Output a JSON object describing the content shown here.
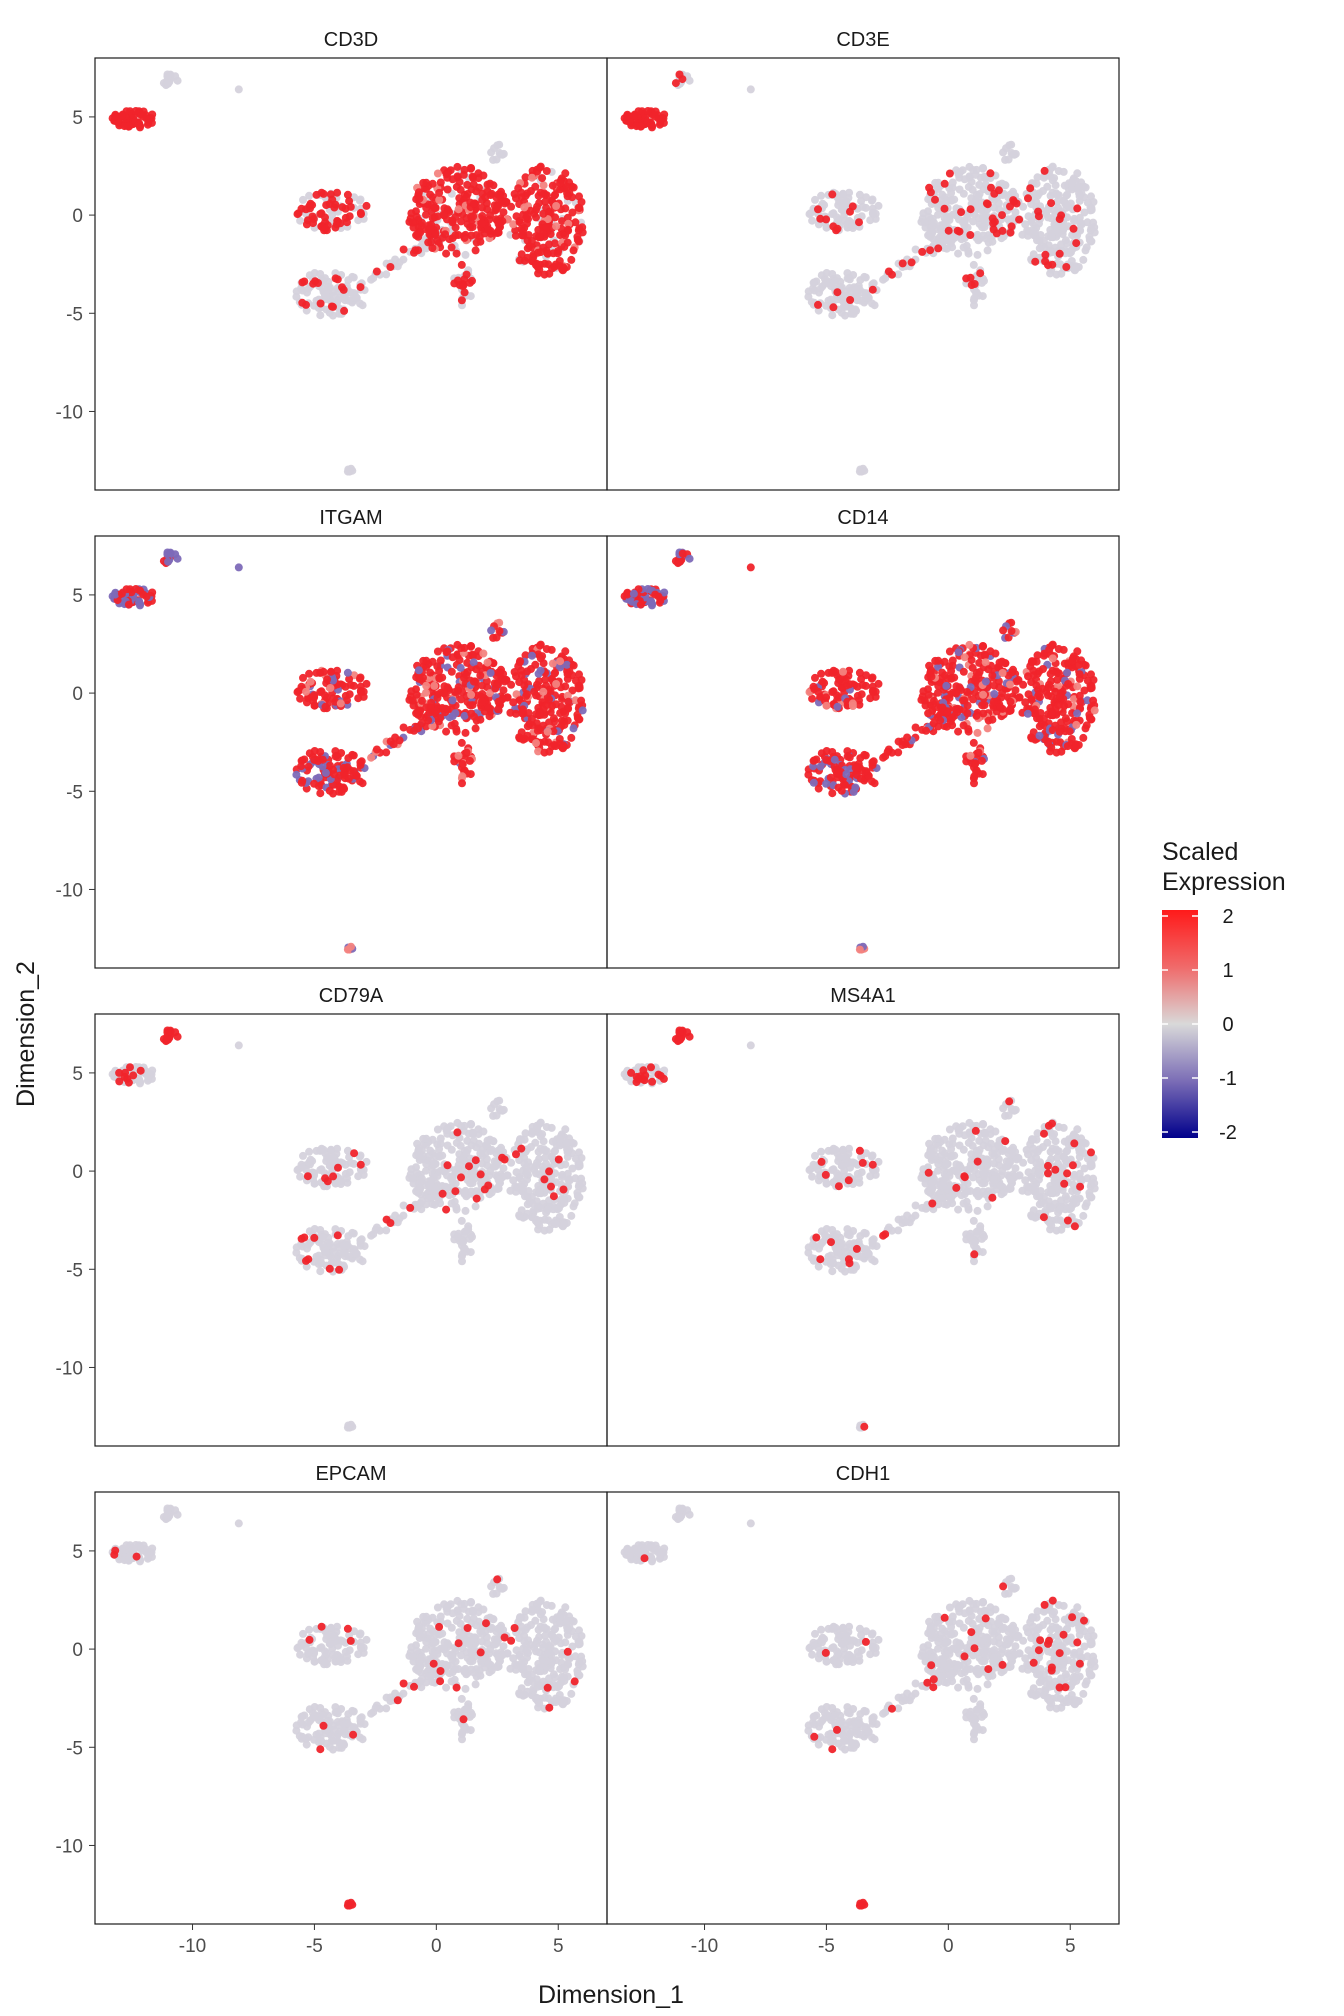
{
  "chart_data": {
    "type": "scatter",
    "panels": [
      {
        "name": "CD3D",
        "expression": "high_tcell"
      },
      {
        "name": "CD3E",
        "expression": "sparse"
      },
      {
        "name": "ITGAM",
        "expression": "high_all"
      },
      {
        "name": "CD14",
        "expression": "high_all"
      },
      {
        "name": "CD79A",
        "expression": "sparse_b"
      },
      {
        "name": "MS4A1",
        "expression": "sparse_b"
      },
      {
        "name": "EPCAM",
        "expression": "sparse_epi"
      },
      {
        "name": "CDH1",
        "expression": "sparse_epi"
      }
    ],
    "xlabel": "Dimension_1",
    "ylabel": "Dimension_2",
    "xlim": [
      -14,
      7
    ],
    "ylim": [
      -14,
      8
    ],
    "xticks": [
      -10,
      -5,
      0,
      5
    ],
    "yticks": [
      5,
      0,
      -5,
      -10
    ],
    "xtick_labels": [
      "-10",
      "-5",
      "0",
      "5"
    ],
    "ytick_labels": [
      "5",
      "0",
      "-5",
      "-10"
    ],
    "layout": "4 rows x 2 columns, shared axes",
    "legend": {
      "title_line1": "Scaled",
      "title_line2": "Expression",
      "placement": "right",
      "ticks": [
        2,
        1,
        0,
        -1,
        -2
      ],
      "tick_labels": [
        "2",
        "1",
        "0",
        "-1",
        "-2"
      ],
      "colors": {
        "high": "#ff1a1a",
        "mid": "#d9d9d9",
        "low": "#00008b"
      }
    },
    "colors": {
      "background_cells": "#d5d2dc",
      "expressed": "#f0242b",
      "low_expressed": "#7d6ab8"
    },
    "clusters_data_units": {
      "top_left_island": {
        "x": [
          -13.3,
          -11.6
        ],
        "y": [
          4.3,
          5.4
        ]
      },
      "small_top_island": {
        "x": [
          -11.2,
          -10.6
        ],
        "y": [
          6.5,
          7.3
        ]
      },
      "lone_cell": {
        "x": -8.1,
        "y": 6.4
      },
      "left_middle_cluster": {
        "x": [
          -5.8,
          -2.8
        ],
        "y": [
          -0.8,
          1.3
        ]
      },
      "left_bottom_cluster": {
        "x": [
          -5.8,
          -2.8
        ],
        "y": [
          -5.3,
          -2.6
        ]
      },
      "main_mass_left_lobe": {
        "x": [
          -1.2,
          3.3
        ],
        "y": [
          -2.8,
          2.8
        ]
      },
      "main_mass_right_lobe": {
        "x": [
          3.0,
          6.0
        ],
        "y": [
          -3.5,
          2.8
        ]
      },
      "downward_tail": {
        "x": [
          0.6,
          1.6
        ],
        "y": [
          -4.8,
          -2.5
        ]
      },
      "bottom_satellite": {
        "x": [
          -3.8,
          -3.4
        ],
        "y": [
          -13.2,
          -12.8
        ]
      }
    }
  }
}
